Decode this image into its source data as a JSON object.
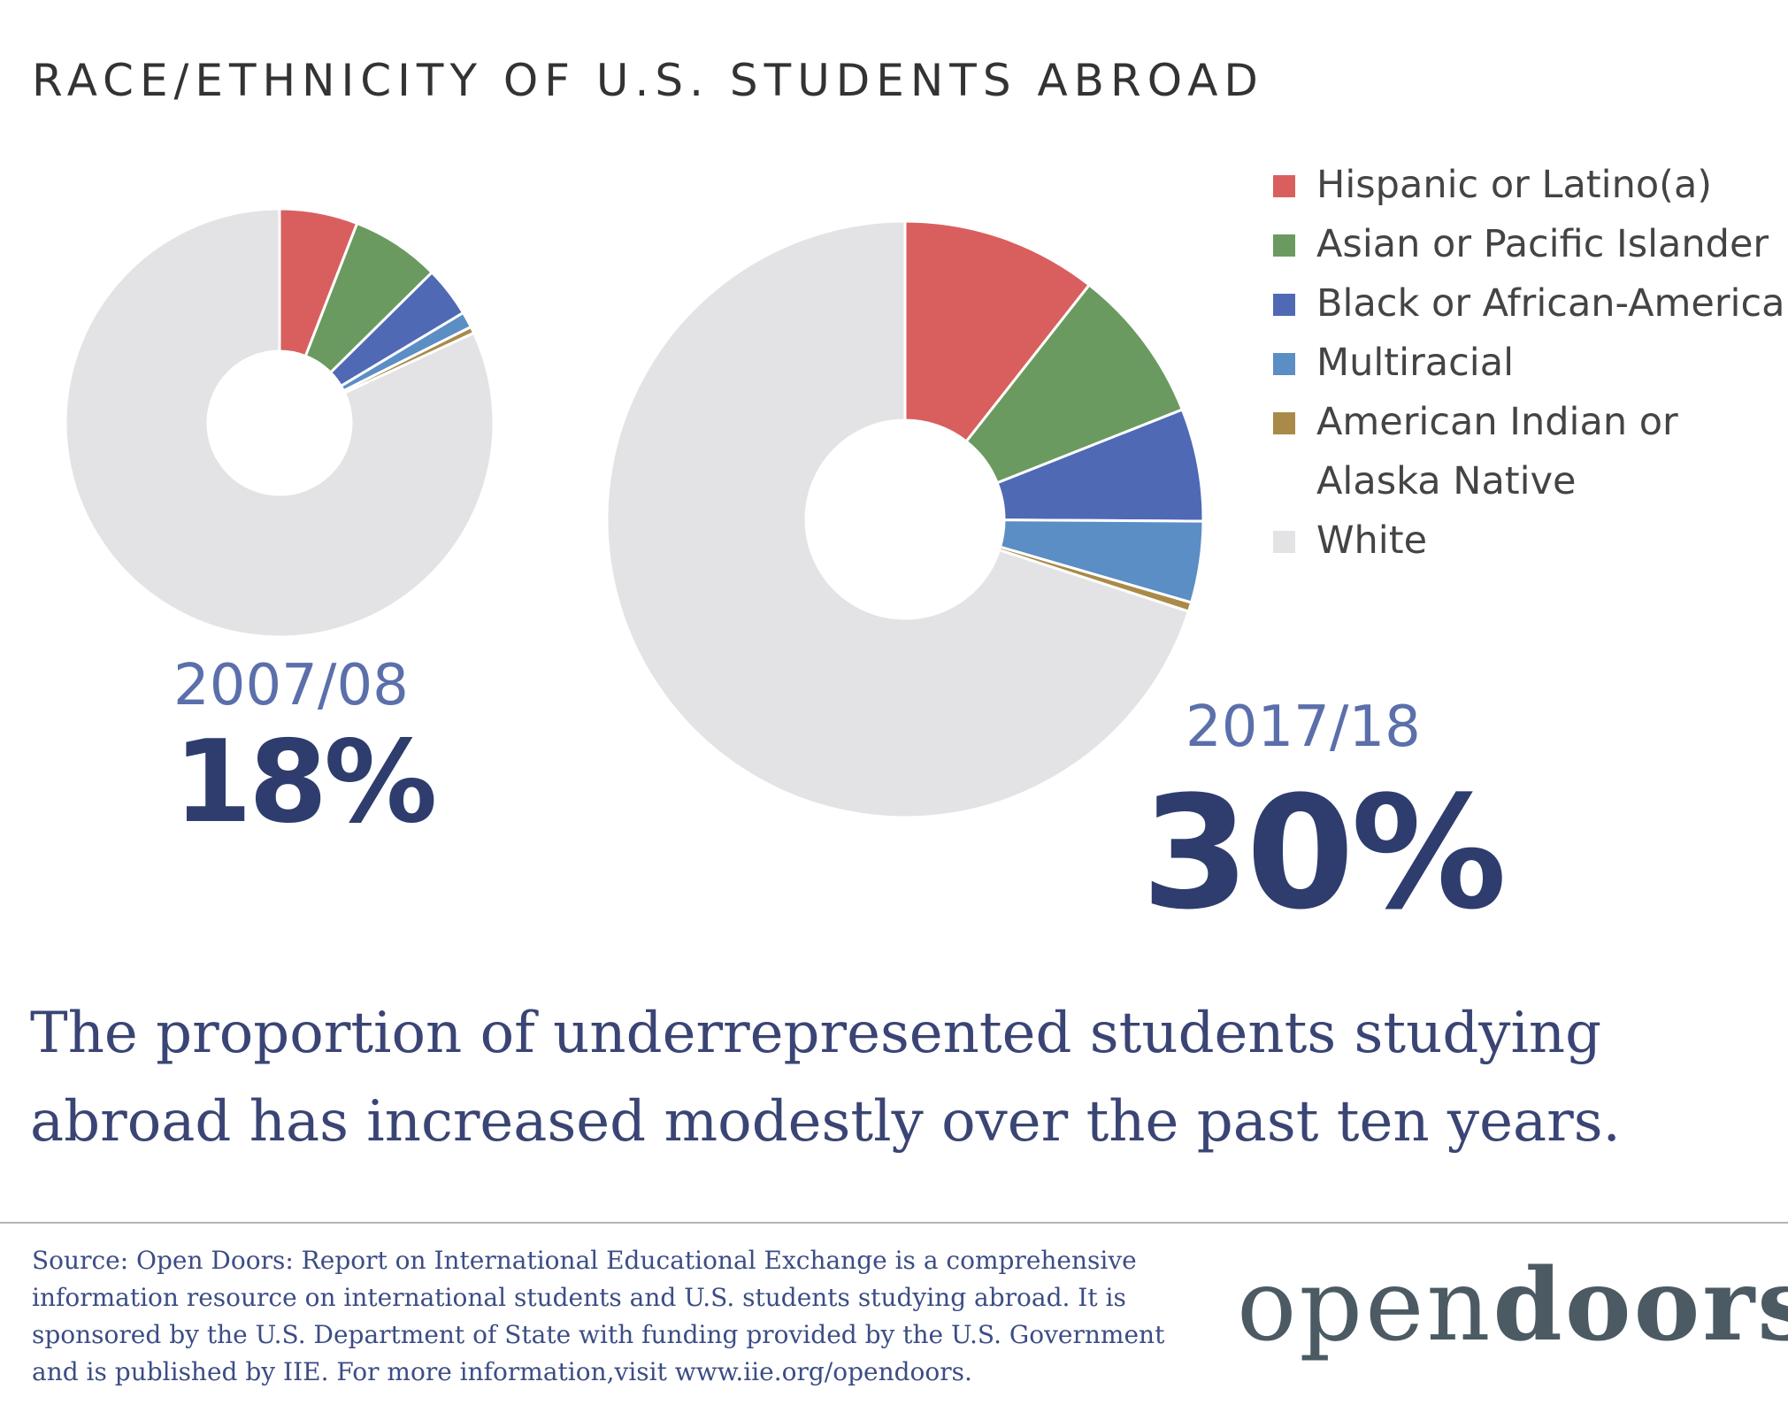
{
  "title": "RACE/ETHNICITY OF U.S. STUDENTS ABROAD",
  "colors": {
    "hispanic": "#d95f5f",
    "asian": "#6a9a5f",
    "black": "#4f69b5",
    "multiracial": "#5b8ec4",
    "american_indian": "#a98a48",
    "white": "#e3e3e5"
  },
  "chart_data": [
    {
      "type": "pie",
      "variant": "donut",
      "title": "2007/08",
      "annotation": "18%",
      "categories": [
        "Hispanic or Latino(a)",
        "Asian or Pacific Islander",
        "Black or African-American",
        "Multiracial",
        "American Indian or Alaska Native",
        "White"
      ],
      "values": [
        5.9,
        6.7,
        3.8,
        1.2,
        0.5,
        81.9
      ]
    },
    {
      "type": "pie",
      "variant": "donut",
      "title": "2017/18",
      "annotation": "30%",
      "categories": [
        "Hispanic or Latino(a)",
        "Asian or Pacific Islander",
        "Black or African-American",
        "Multiracial",
        "American Indian or Alaska Native",
        "White"
      ],
      "values": [
        10.6,
        8.4,
        6.1,
        4.4,
        0.5,
        70.0
      ]
    }
  ],
  "legend": [
    {
      "label": "Hispanic or Latino(a)",
      "color": "#d95f5f"
    },
    {
      "label": "Asian or Pacific Islander",
      "color": "#6a9a5f"
    },
    {
      "label": "Black or African-American",
      "color": "#4f69b5"
    },
    {
      "label": "Multiracial",
      "color": "#5b8ec4"
    },
    {
      "label": "American Indian or Alaska Native",
      "color": "#a98a48"
    },
    {
      "label": "White",
      "color": "#e3e3e5"
    }
  ],
  "summary": "The proportion of underrepresented students studying abroad has increased modestly over the past ten years.",
  "source": "Source: Open Doors: Report on International Educational Exchange is a comprehensive information resource on international students and U.S. students studying abroad.  It is sponsored by the U.S. Department of State with funding provided by the U.S. Government and is published by IIE. For more information,visit www.iie.org/opendoors.",
  "logo": {
    "light": "open",
    "bold": "doors",
    "mark": "®"
  }
}
